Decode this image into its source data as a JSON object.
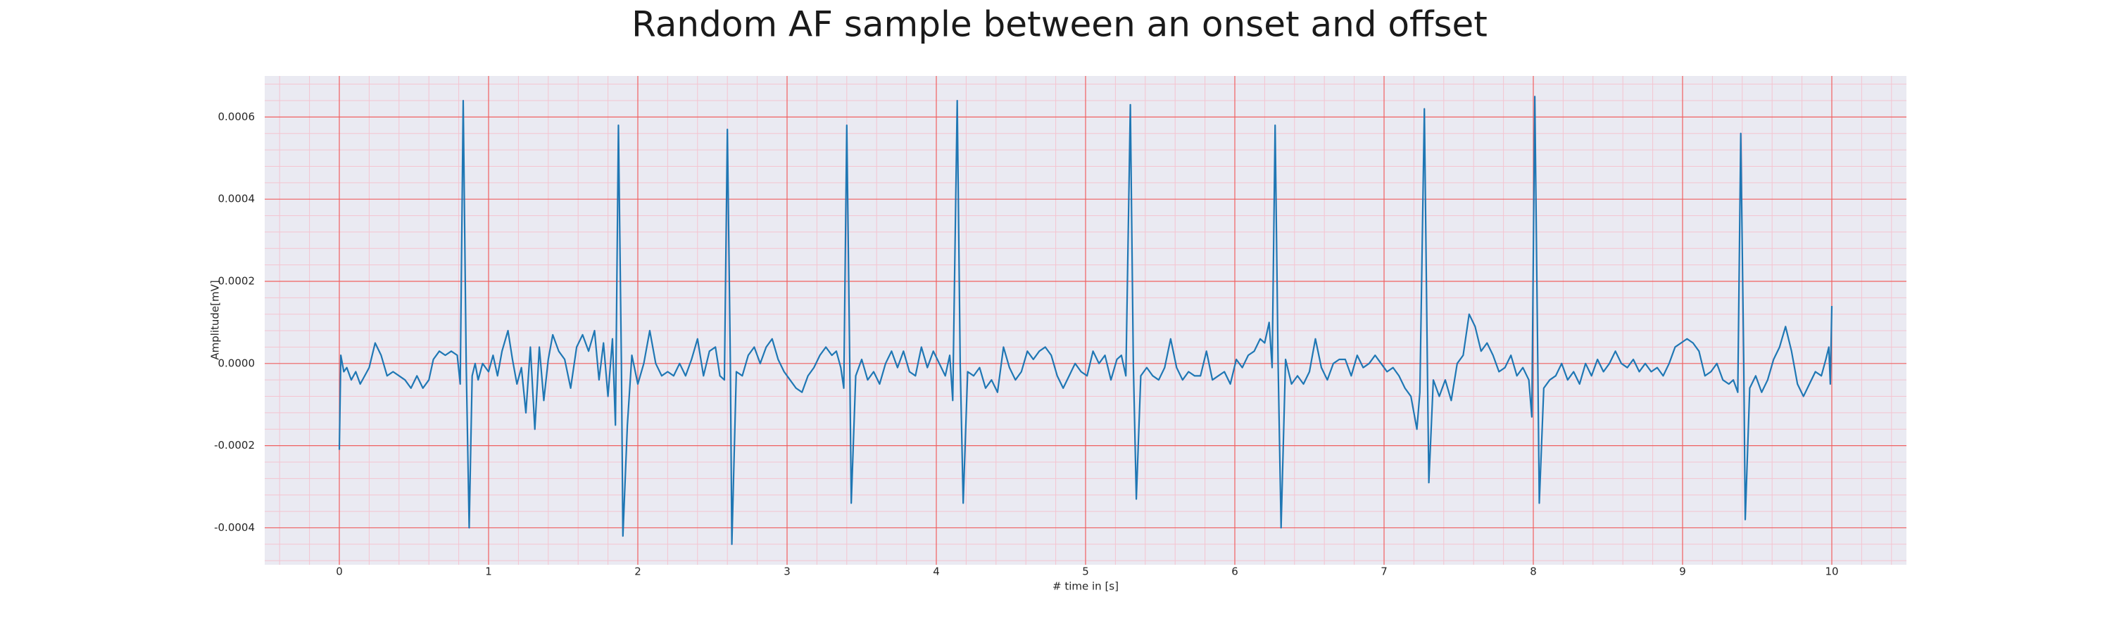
{
  "chart_data": {
    "type": "line",
    "title": "Random AF sample between an onset and offset",
    "xlabel": "# time in [s]",
    "ylabel": "Amplitude[mV]",
    "color": "#1f77b4",
    "grid": true,
    "minor_grid": true,
    "xlim": [
      -0.5,
      10.5
    ],
    "xticks": [
      0,
      1,
      2,
      3,
      4,
      5,
      6,
      7,
      8,
      9,
      10
    ],
    "ylim": [
      -0.00049,
      0.0007
    ],
    "yticks": [
      {
        "value": -0.0004,
        "label": "-0.0004"
      },
      {
        "value": -0.0002,
        "label": "-0.0002"
      },
      {
        "value": 0,
        "label": "0.0000"
      },
      {
        "value": 0.0002,
        "label": "0.0002"
      },
      {
        "value": 0.0004,
        "label": "0.0004"
      },
      {
        "value": 0.0006,
        "label": "0.0006"
      }
    ],
    "x": [
      0,
      0.01,
      0.03,
      0.05,
      0.08,
      0.11,
      0.14,
      0.17,
      0.2,
      0.24,
      0.28,
      0.32,
      0.36,
      0.4,
      0.44,
      0.48,
      0.52,
      0.56,
      0.6,
      0.63,
      0.67,
      0.71,
      0.75,
      0.79,
      0.81,
      0.83,
      0.85,
      0.87,
      0.89,
      0.91,
      0.93,
      0.96,
      1.0,
      1.03,
      1.06,
      1.09,
      1.13,
      1.16,
      1.19,
      1.22,
      1.25,
      1.28,
      1.31,
      1.34,
      1.37,
      1.4,
      1.43,
      1.47,
      1.51,
      1.55,
      1.59,
      1.63,
      1.67,
      1.71,
      1.74,
      1.77,
      1.8,
      1.83,
      1.85,
      1.87,
      1.89,
      1.9,
      1.93,
      1.96,
      2.0,
      2.04,
      2.08,
      2.12,
      2.16,
      2.2,
      2.24,
      2.28,
      2.32,
      2.36,
      2.4,
      2.44,
      2.48,
      2.52,
      2.55,
      2.58,
      2.6,
      2.62,
      2.63,
      2.66,
      2.7,
      2.74,
      2.78,
      2.82,
      2.86,
      2.9,
      2.94,
      2.98,
      3.02,
      3.06,
      3.1,
      3.14,
      3.18,
      3.22,
      3.26,
      3.3,
      3.33,
      3.36,
      3.38,
      3.4,
      3.42,
      3.43,
      3.46,
      3.5,
      3.54,
      3.58,
      3.62,
      3.66,
      3.7,
      3.74,
      3.78,
      3.82,
      3.86,
      3.9,
      3.94,
      3.98,
      4.02,
      4.06,
      4.09,
      4.11,
      4.14,
      4.16,
      4.18,
      4.21,
      4.25,
      4.29,
      4.33,
      4.37,
      4.41,
      4.45,
      4.49,
      4.53,
      4.57,
      4.61,
      4.65,
      4.69,
      4.73,
      4.77,
      4.81,
      4.85,
      4.89,
      4.93,
      4.97,
      5.01,
      5.05,
      5.09,
      5.13,
      5.17,
      5.21,
      5.24,
      5.27,
      5.3,
      5.32,
      5.34,
      5.37,
      5.41,
      5.45,
      5.49,
      5.53,
      5.57,
      5.61,
      5.65,
      5.69,
      5.73,
      5.77,
      5.81,
      5.85,
      5.89,
      5.93,
      5.97,
      6.01,
      6.05,
      6.09,
      6.13,
      6.17,
      6.2,
      6.23,
      6.25,
      6.27,
      6.29,
      6.31,
      6.34,
      6.38,
      6.42,
      6.46,
      6.5,
      6.54,
      6.58,
      6.62,
      6.66,
      6.7,
      6.74,
      6.78,
      6.82,
      6.86,
      6.9,
      6.94,
      6.98,
      7.02,
      7.06,
      7.1,
      7.14,
      7.18,
      7.22,
      7.24,
      7.27,
      7.29,
      7.3,
      7.33,
      7.37,
      7.41,
      7.45,
      7.49,
      7.53,
      7.57,
      7.61,
      7.65,
      7.69,
      7.73,
      7.77,
      7.81,
      7.85,
      7.89,
      7.93,
      7.97,
      7.99,
      8.01,
      8.03,
      8.04,
      8.07,
      8.11,
      8.15,
      8.19,
      8.23,
      8.27,
      8.31,
      8.35,
      8.39,
      8.43,
      8.47,
      8.51,
      8.55,
      8.59,
      8.63,
      8.67,
      8.71,
      8.75,
      8.79,
      8.83,
      8.87,
      8.91,
      8.95,
      8.99,
      9.03,
      9.07,
      9.11,
      9.15,
      9.19,
      9.23,
      9.27,
      9.31,
      9.34,
      9.37,
      9.39,
      9.41,
      9.42,
      9.45,
      9.49,
      9.53,
      9.57,
      9.61,
      9.65,
      9.69,
      9.73,
      9.77,
      9.81,
      9.85,
      9.89,
      9.93,
      9.96,
      9.98,
      9.99,
      10.0
    ],
    "values": [
      -0.00021,
      2e-05,
      -2e-05,
      -1e-05,
      -4e-05,
      -2e-05,
      -5e-05,
      -3e-05,
      -1e-05,
      5e-05,
      2e-05,
      -3e-05,
      -2e-05,
      -3e-05,
      -4e-05,
      -6e-05,
      -3e-05,
      -6e-05,
      -4e-05,
      1e-05,
      3e-05,
      2e-05,
      3e-05,
      2e-05,
      -5e-05,
      0.00064,
      0,
      -0.0004,
      -3e-05,
      0,
      -4e-05,
      0,
      -2e-05,
      2e-05,
      -3e-05,
      3e-05,
      8e-05,
      1e-05,
      -5e-05,
      -1e-05,
      -0.00012,
      4e-05,
      -0.00016,
      4e-05,
      -9e-05,
      1e-05,
      7e-05,
      3e-05,
      1e-05,
      -6e-05,
      4e-05,
      7e-05,
      3e-05,
      8e-05,
      -4e-05,
      5e-05,
      -8e-05,
      6e-05,
      -0.00015,
      0.00058,
      0,
      -0.00042,
      -0.00015,
      2e-05,
      -5e-05,
      0,
      8e-05,
      0,
      -3e-05,
      -2e-05,
      -3e-05,
      0,
      -3e-05,
      1e-05,
      6e-05,
      -3e-05,
      3e-05,
      4e-05,
      -3e-05,
      -4e-05,
      0.00057,
      0,
      -0.00044,
      -2e-05,
      -3e-05,
      2e-05,
      4e-05,
      0,
      4e-05,
      6e-05,
      1e-05,
      -2e-05,
      -4e-05,
      -6e-05,
      -7e-05,
      -3e-05,
      -1e-05,
      2e-05,
      4e-05,
      2e-05,
      3e-05,
      -1e-05,
      -6e-05,
      0.00058,
      0,
      -0.00034,
      -3e-05,
      1e-05,
      -4e-05,
      -2e-05,
      -5e-05,
      0,
      3e-05,
      -1e-05,
      3e-05,
      -2e-05,
      -3e-05,
      4e-05,
      -1e-05,
      3e-05,
      0,
      -3e-05,
      2e-05,
      -9e-05,
      0.00064,
      0,
      -0.00034,
      -2e-05,
      -3e-05,
      -1e-05,
      -6e-05,
      -4e-05,
      -7e-05,
      4e-05,
      -1e-05,
      -4e-05,
      -2e-05,
      3e-05,
      1e-05,
      3e-05,
      4e-05,
      2e-05,
      -3e-05,
      -6e-05,
      -3e-05,
      0,
      -2e-05,
      -3e-05,
      3e-05,
      0,
      2e-05,
      -4e-05,
      1e-05,
      2e-05,
      -3e-05,
      0.00063,
      0,
      -0.00033,
      -3e-05,
      -1e-05,
      -3e-05,
      -4e-05,
      -1e-05,
      6e-05,
      -1e-05,
      -4e-05,
      -2e-05,
      -3e-05,
      -3e-05,
      3e-05,
      -4e-05,
      -3e-05,
      -2e-05,
      -5e-05,
      1e-05,
      -1e-05,
      2e-05,
      3e-05,
      6e-05,
      5e-05,
      0.0001,
      -1e-05,
      0.00058,
      0,
      -0.0004,
      1e-05,
      -5e-05,
      -3e-05,
      -5e-05,
      -2e-05,
      6e-05,
      -1e-05,
      -4e-05,
      0,
      1e-05,
      1e-05,
      -3e-05,
      2e-05,
      -1e-05,
      0,
      2e-05,
      0,
      -2e-05,
      -1e-05,
      -3e-05,
      -6e-05,
      -8e-05,
      -0.00016,
      -7e-05,
      0.00062,
      0,
      -0.00029,
      -4e-05,
      -8e-05,
      -4e-05,
      -9e-05,
      0,
      2e-05,
      0.00012,
      9e-05,
      3e-05,
      5e-05,
      2e-05,
      -2e-05,
      -1e-05,
      2e-05,
      -3e-05,
      -1e-05,
      -4e-05,
      -0.00013,
      0.00065,
      0,
      -0.00034,
      -6e-05,
      -4e-05,
      -3e-05,
      0,
      -4e-05,
      -2e-05,
      -5e-05,
      0,
      -3e-05,
      1e-05,
      -2e-05,
      0,
      3e-05,
      0,
      -1e-05,
      1e-05,
      -2e-05,
      0,
      -2e-05,
      -1e-05,
      -3e-05,
      0,
      4e-05,
      5e-05,
      6e-05,
      5e-05,
      3e-05,
      -3e-05,
      -2e-05,
      0,
      -4e-05,
      -5e-05,
      -4e-05,
      -7e-05,
      0.00056,
      0,
      -0.00038,
      -6e-05,
      -3e-05,
      -7e-05,
      -4e-05,
      1e-05,
      4e-05,
      9e-05,
      3e-05,
      -5e-05,
      -8e-05,
      -5e-05,
      -2e-05,
      -3e-05,
      1e-05,
      4e-05,
      -5e-05,
      0.00014
    ]
  }
}
